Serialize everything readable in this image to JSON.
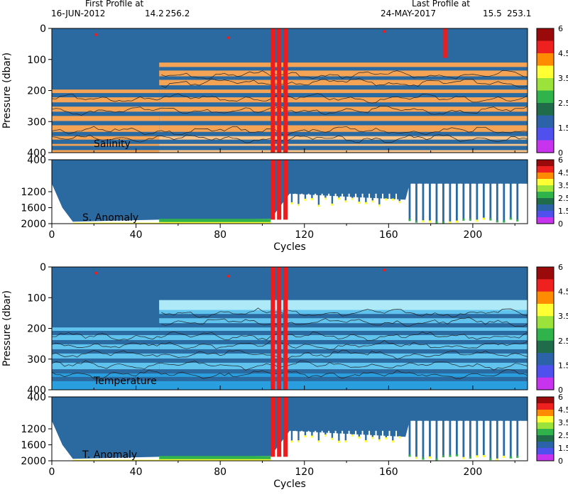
{
  "header": {
    "first_label": "First Profile at",
    "first_date": "16-JUN-2012",
    "first_lat": "14.2",
    "first_lon": "256.2",
    "last_label": "Last Profile at",
    "last_date": "24-MAY-2017",
    "last_lat": "15.5",
    "last_lon": "253.1"
  },
  "colors": {
    "flag_blue": "#2b6aa0",
    "salinity_orange": "#f5a455",
    "salinity_light": "#f8c890",
    "temp_light": "#aee9f7",
    "temp_mid": "#5fc3ee",
    "temp_deep": "#2a9fe0",
    "bad_red": "#ee1c1c",
    "contour": "#222222"
  },
  "colorbar": {
    "ticks": [
      "6",
      "4.5",
      "3.5",
      "2.5",
      "1.5",
      "0"
    ],
    "colors": [
      "#9b0a0a",
      "#ee2020",
      "#ff8c00",
      "#ffff33",
      "#9be33a",
      "#2fb34a",
      "#1f6b4a",
      "#2c63a8",
      "#5050ee",
      "#c833ee"
    ]
  },
  "chart_data": [
    {
      "type": "heatmap",
      "title": "Salinity",
      "ylabel": "Pressure (dbar)",
      "xlim": [
        0,
        226
      ],
      "ylim": [
        400,
        0
      ],
      "yticks": [
        "0",
        "100",
        "200",
        "300",
        "400"
      ],
      "xticks": [
        "0",
        "40",
        "80",
        "120",
        "160",
        "200"
      ],
      "flag_bands_dbar": [
        190,
        215,
        245,
        275,
        305,
        340,
        365,
        385
      ],
      "bad_cycles": [
        105,
        108,
        111,
        187
      ]
    },
    {
      "type": "heatmap",
      "title": "S. Anomaly",
      "xlim": [
        0,
        226
      ],
      "ylim": [
        2000,
        400
      ],
      "yticks": [
        "400",
        "1200",
        "1600",
        "2000"
      ],
      "xticks": [
        "0",
        "40",
        "80",
        "120",
        "160",
        "200"
      ],
      "xlabel": "Cycles",
      "profile_depth_dbar": [
        [
          0,
          1000
        ],
        [
          5,
          1600
        ],
        [
          10,
          1950
        ],
        [
          51,
          1900
        ],
        [
          104,
          1880
        ],
        [
          113,
          1250
        ],
        [
          168,
          1400
        ],
        [
          170,
          1000
        ],
        [
          226,
          1000
        ]
      ]
    },
    {
      "type": "heatmap",
      "title": "Temperature",
      "ylabel": "Pressure (dbar)",
      "xlim": [
        0,
        226
      ],
      "ylim": [
        400,
        0
      ],
      "yticks": [
        "0",
        "100",
        "200",
        "300",
        "400"
      ],
      "xticks": [
        "0",
        "40",
        "80",
        "120",
        "160",
        "200"
      ],
      "flag_bands_dbar": [
        160,
        190,
        215,
        245,
        275,
        305,
        340,
        365
      ],
      "bad_cycles": [
        105,
        108,
        111
      ]
    },
    {
      "type": "heatmap",
      "title": "T. Anomaly",
      "xlim": [
        0,
        226
      ],
      "ylim": [
        2000,
        400
      ],
      "yticks": [
        "400",
        "1200",
        "1600",
        "2000"
      ],
      "xticks": [
        "0",
        "40",
        "80",
        "120",
        "160",
        "200"
      ],
      "xlabel": "Cycles",
      "profile_depth_dbar": [
        [
          0,
          1000
        ],
        [
          5,
          1600
        ],
        [
          10,
          1950
        ],
        [
          51,
          1900
        ],
        [
          104,
          1880
        ],
        [
          113,
          1250
        ],
        [
          168,
          1400
        ],
        [
          170,
          1000
        ],
        [
          226,
          1000
        ]
      ]
    }
  ]
}
